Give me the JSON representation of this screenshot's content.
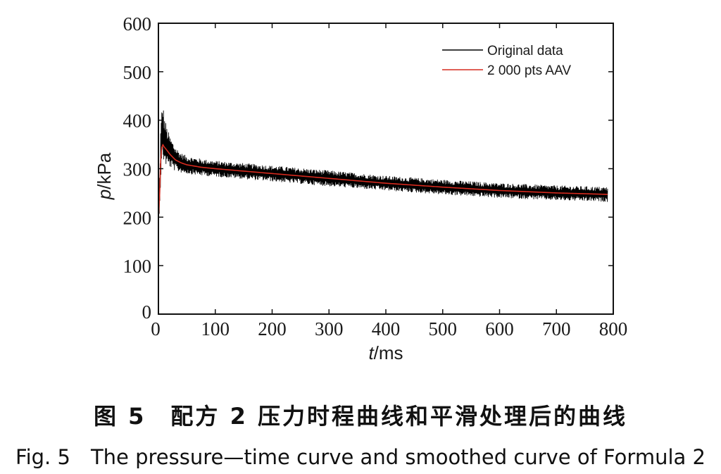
{
  "chart_data": {
    "type": "line",
    "xlabel_italic": "t",
    "xlabel_unit": "/ms",
    "ylabel_italic": "p",
    "ylabel_unit": "/kPa",
    "xlim": [
      0,
      800
    ],
    "ylim": [
      0,
      600
    ],
    "xticks": [
      0,
      100,
      200,
      300,
      400,
      500,
      600,
      700,
      800
    ],
    "yticks": [
      0,
      100,
      200,
      300,
      400,
      500,
      600
    ],
    "legend_position": "top-right",
    "grid": false,
    "series": [
      {
        "name": "Original data",
        "color": "#000000",
        "style": "noisy",
        "x": [
          0,
          2,
          4,
          6,
          8,
          10,
          15,
          20,
          30,
          40,
          50,
          75,
          100,
          150,
          200,
          300,
          400,
          500,
          600,
          700,
          790
        ],
        "y": [
          200,
          250,
          330,
          365,
          380,
          360,
          345,
          335,
          320,
          312,
          308,
          303,
          300,
          295,
          290,
          280,
          270,
          262,
          255,
          250,
          247
        ],
        "noise_amplitude": [
          0,
          40,
          55,
          60,
          55,
          50,
          40,
          32,
          25,
          20,
          18,
          17,
          16,
          16,
          16,
          16,
          15,
          15,
          15,
          15,
          15
        ]
      },
      {
        "name": "2 000 pts AAV",
        "color": "#d62a1e",
        "style": "smooth",
        "x": [
          0,
          2,
          4,
          6,
          8,
          10,
          15,
          20,
          30,
          40,
          50,
          75,
          100,
          150,
          200,
          300,
          400,
          500,
          600,
          700,
          790
        ],
        "y": [
          200,
          240,
          320,
          345,
          350,
          345,
          338,
          330,
          318,
          312,
          308,
          303,
          300,
          295,
          290,
          280,
          270,
          262,
          255,
          250,
          247
        ]
      }
    ]
  },
  "caption": {
    "zh": "图 5　配方 2 压力时程曲线和平滑处理后的曲线",
    "en": "Fig. 5　The pressure—time curve and smoothed curve of Formula 2"
  }
}
